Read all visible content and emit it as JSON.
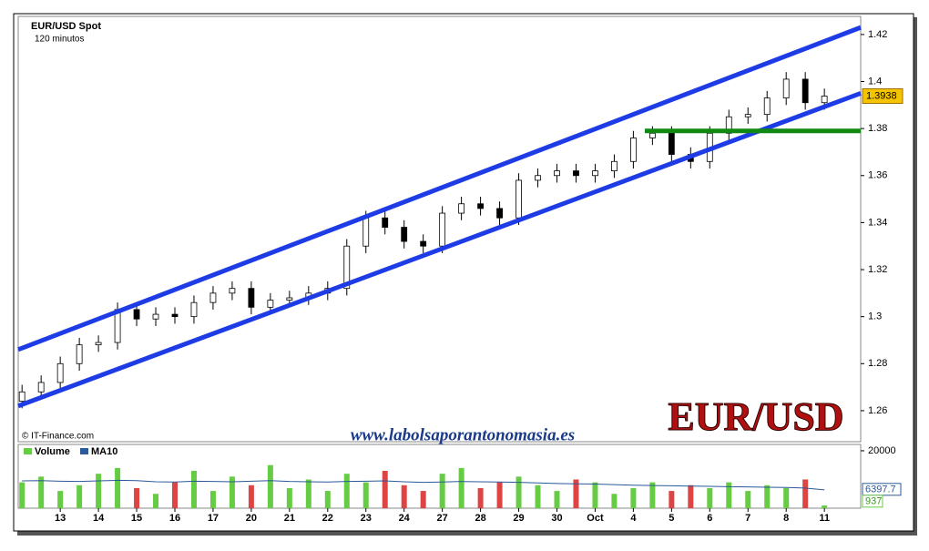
{
  "chart_data": {
    "type": "candlestick",
    "title": "EUR/USD Spot",
    "subtitle": "120 minutos",
    "source": "© IT-Finance.com",
    "website": "www.labolsaporantonomasia.es",
    "watermark": "EUR/USD",
    "xlim": [
      -1.1,
      20.95
    ],
    "xticks": [
      {
        "value": 0,
        "label": "13"
      },
      {
        "value": 1,
        "label": "14"
      },
      {
        "value": 2,
        "label": "15"
      },
      {
        "value": 3,
        "label": "16"
      },
      {
        "value": 4,
        "label": "17"
      },
      {
        "value": 5,
        "label": "20"
      },
      {
        "value": 6,
        "label": "21"
      },
      {
        "value": 7,
        "label": "22"
      },
      {
        "value": 8,
        "label": "23"
      },
      {
        "value": 9,
        "label": "24"
      },
      {
        "value": 10,
        "label": "27"
      },
      {
        "value": 11,
        "label": "28"
      },
      {
        "value": 12,
        "label": "29"
      },
      {
        "value": 13,
        "label": "30"
      },
      {
        "value": 14,
        "label": "Oct"
      },
      {
        "value": 15,
        "label": "4"
      },
      {
        "value": 16,
        "label": "5"
      },
      {
        "value": 17,
        "label": "6"
      },
      {
        "value": 18,
        "label": "7"
      },
      {
        "value": 19,
        "label": "8"
      },
      {
        "value": 20,
        "label": "11"
      }
    ],
    "ylim": [
      1.2468,
      1.4277
    ],
    "yticks": [
      1.26,
      1.28,
      1.3,
      1.32,
      1.34,
      1.36,
      1.38,
      1.4,
      1.42
    ],
    "x": [
      -1,
      -0.5,
      0,
      0.5,
      1,
      1.5,
      2,
      2.5,
      3,
      3.5,
      4,
      4.5,
      5,
      5.5,
      6,
      6.5,
      7,
      7.5,
      8,
      8.5,
      9,
      9.5,
      10,
      10.5,
      11,
      11.5,
      12,
      12.5,
      13,
      13.5,
      14,
      14.5,
      15,
      15.5,
      16,
      16.5,
      17,
      17.5,
      18,
      18.5,
      19,
      19.5,
      20
    ],
    "open": [
      1.264,
      1.268,
      1.272,
      1.28,
      1.288,
      1.289,
      1.303,
      1.299,
      1.301,
      1.3,
      1.306,
      1.31,
      1.312,
      1.304,
      1.307,
      1.308,
      1.31,
      1.312,
      1.33,
      1.342,
      1.338,
      1.332,
      1.33,
      1.344,
      1.348,
      1.346,
      1.342,
      1.358,
      1.36,
      1.362,
      1.36,
      1.362,
      1.366,
      1.376,
      1.378,
      1.369,
      1.366,
      1.378,
      1.385,
      1.386,
      1.393,
      1.401,
      1.391
    ],
    "high": [
      1.271,
      1.275,
      1.283,
      1.291,
      1.292,
      1.306,
      1.306,
      1.304,
      1.304,
      1.309,
      1.313,
      1.315,
      1.315,
      1.31,
      1.311,
      1.313,
      1.315,
      1.333,
      1.345,
      1.345,
      1.341,
      1.335,
      1.347,
      1.351,
      1.351,
      1.349,
      1.361,
      1.363,
      1.365,
      1.365,
      1.365,
      1.369,
      1.379,
      1.381,
      1.381,
      1.372,
      1.381,
      1.388,
      1.389,
      1.396,
      1.404,
      1.404,
      1.397
    ],
    "low": [
      1.261,
      1.265,
      1.269,
      1.277,
      1.285,
      1.286,
      1.296,
      1.296,
      1.297,
      1.297,
      1.303,
      1.307,
      1.301,
      1.301,
      1.304,
      1.305,
      1.307,
      1.309,
      1.327,
      1.335,
      1.329,
      1.327,
      1.327,
      1.341,
      1.343,
      1.339,
      1.339,
      1.355,
      1.357,
      1.357,
      1.357,
      1.359,
      1.363,
      1.373,
      1.366,
      1.363,
      1.363,
      1.375,
      1.382,
      1.383,
      1.39,
      1.388,
      1.388
    ],
    "close": [
      1.268,
      1.272,
      1.28,
      1.288,
      1.289,
      1.303,
      1.299,
      1.301,
      1.3,
      1.306,
      1.31,
      1.312,
      1.304,
      1.307,
      1.308,
      1.31,
      1.312,
      1.33,
      1.342,
      1.338,
      1.332,
      1.33,
      1.344,
      1.348,
      1.346,
      1.342,
      1.358,
      1.36,
      1.362,
      1.36,
      1.362,
      1.366,
      1.376,
      1.378,
      1.369,
      1.366,
      1.378,
      1.385,
      1.386,
      1.393,
      1.401,
      1.391,
      1.3938
    ],
    "lines": [
      {
        "color": "#1e3ce6",
        "x": [
          -1.1,
          20.95
        ],
        "y": [
          1.286,
          1.423
        ]
      },
      {
        "color": "#1e3ce6",
        "x": [
          -1.1,
          20.95
        ],
        "y": [
          1.262,
          1.395
        ]
      },
      {
        "color": "#118811",
        "x": [
          15.3,
          20.95
        ],
        "y": [
          1.379,
          1.379
        ]
      }
    ],
    "volume": {
      "ylim": [
        0,
        22200
      ],
      "yticks": [
        20000
      ],
      "up_color": "#66cc44",
      "down_color": "#dd4444",
      "series": [
        {
          "name": "Volume",
          "color": "#66cc44",
          "values": [
            9000,
            11000,
            6000,
            8000,
            12000,
            14000,
            7000,
            5000,
            9000,
            13000,
            6000,
            11000,
            8000,
            15000,
            7000,
            10000,
            6000,
            12000,
            9000,
            13000,
            8000,
            6000,
            12000,
            14000,
            7000,
            9000,
            11000,
            8000,
            6000,
            10000,
            9000,
            5000,
            7000,
            9000,
            6000,
            8000,
            7000,
            9000,
            6000,
            8000,
            7000,
            10000,
            937
          ]
        },
        {
          "name": "MA10",
          "color": "#2a5a9a",
          "values": [
            9500,
            9600,
            9400,
            9300,
            9500,
            9700,
            9600,
            9200,
            9100,
            9400,
            9300,
            9200,
            9400,
            9600,
            9300,
            9200,
            9100,
            9300,
            9400,
            9500,
            9200,
            9000,
            9100,
            9300,
            9200,
            9100,
            9000,
            8800,
            8600,
            8500,
            8400,
            8200,
            8000,
            7900,
            7800,
            7700,
            7600,
            7500,
            7400,
            7300,
            7200,
            7000,
            6397.7
          ]
        }
      ]
    }
  }
}
